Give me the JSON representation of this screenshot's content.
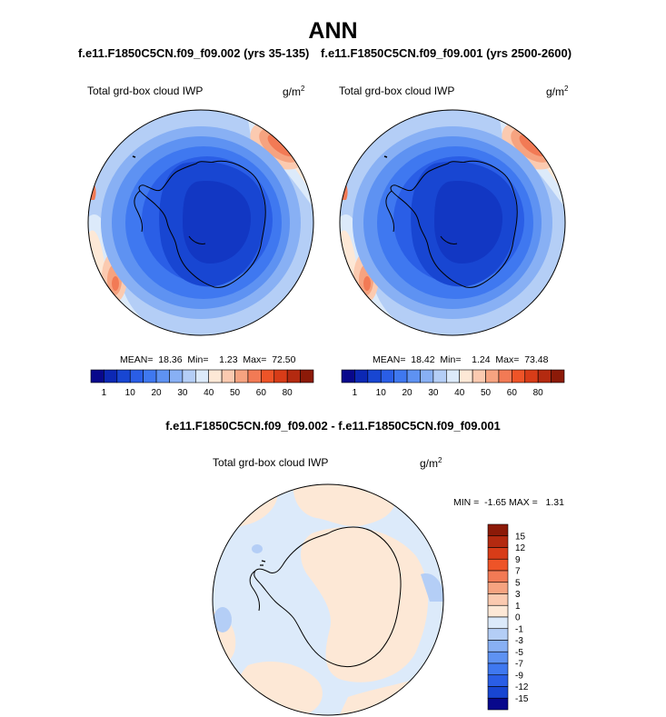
{
  "figure": {
    "title": "ANN",
    "case1_label": "f.e11.F1850C5CN.f09_f09.002 (yrs 35-135)",
    "case2_label": "f.e11.F1850C5CN.f09_f09.001 (yrs 2500-2600)",
    "diff_label": "f.e11.F1850C5CN.f09_f09.002 - f.e11.F1850C5CN.f09_f09.001"
  },
  "panels": {
    "left": {
      "variable": "Total grd-box cloud IWP",
      "units_base": "g/m",
      "units_exp": "2",
      "stats": "MEAN=  18.36  Min=    1.23  Max=  72.50"
    },
    "right": {
      "variable": "Total grd-box cloud IWP",
      "units_base": "g/m",
      "units_exp": "2",
      "stats": "MEAN=  18.42  Min=    1.24  Max=  73.48"
    },
    "diff": {
      "variable": "Total grd-box cloud IWP",
      "units_base": "g/m",
      "units_exp": "2",
      "stats": "MIN =  -1.65 MAX =   1.31"
    }
  },
  "chart_data": [
    {
      "type": "heatmap",
      "projection": "south-polar-stereographic",
      "title": "Total grd-box cloud IWP",
      "units": "g/m^2",
      "stats": {
        "mean": 18.36,
        "min": 1.23,
        "max": 72.5
      },
      "colorbar": {
        "orientation": "horizontal",
        "tick_labels": [
          "1",
          "10",
          "20",
          "30",
          "40",
          "50",
          "60",
          "80"
        ],
        "colors": [
          "#08088c",
          "#0c28b4",
          "#1846d2",
          "#2a5ee6",
          "#3f78f0",
          "#5e92f2",
          "#88b0f4",
          "#b4cef6",
          "#dceafa",
          "#fde8d6",
          "#fbcab0",
          "#f6a380",
          "#f27a55",
          "#ee5428",
          "#d83c18",
          "#b42a10",
          "#8c1a08"
        ]
      }
    },
    {
      "type": "heatmap",
      "projection": "south-polar-stereographic",
      "title": "Total grd-box cloud IWP",
      "units": "g/m^2",
      "stats": {
        "mean": 18.42,
        "min": 1.24,
        "max": 73.48
      },
      "colorbar": {
        "orientation": "horizontal",
        "tick_labels": [
          "1",
          "10",
          "20",
          "30",
          "40",
          "50",
          "60",
          "80"
        ],
        "colors": [
          "#08088c",
          "#0c28b4",
          "#1846d2",
          "#2a5ee6",
          "#3f78f0",
          "#5e92f2",
          "#88b0f4",
          "#b4cef6",
          "#dceafa",
          "#fde8d6",
          "#fbcab0",
          "#f6a380",
          "#f27a55",
          "#ee5428",
          "#d83c18",
          "#b42a10",
          "#8c1a08"
        ]
      }
    },
    {
      "type": "heatmap",
      "projection": "south-polar-stereographic",
      "title": "Total grd-box cloud IWP",
      "units": "g/m^2",
      "stats": {
        "min": -1.65,
        "max": 1.31
      },
      "colorbar": {
        "orientation": "vertical",
        "tick_labels": [
          "15",
          "12",
          "9",
          "7",
          "5",
          "3",
          "1",
          "0",
          "-1",
          "-3",
          "-5",
          "-7",
          "-9",
          "-12",
          "-15"
        ],
        "colors": [
          "#8c1a08",
          "#b42a10",
          "#d83c18",
          "#ee5428",
          "#f27a55",
          "#f6a380",
          "#fbcab0",
          "#fde8d6",
          "#dceafa",
          "#b4cef6",
          "#88b0f4",
          "#5e92f2",
          "#3f78f0",
          "#2a5ee6",
          "#1846d2",
          "#08088c"
        ]
      }
    }
  ]
}
